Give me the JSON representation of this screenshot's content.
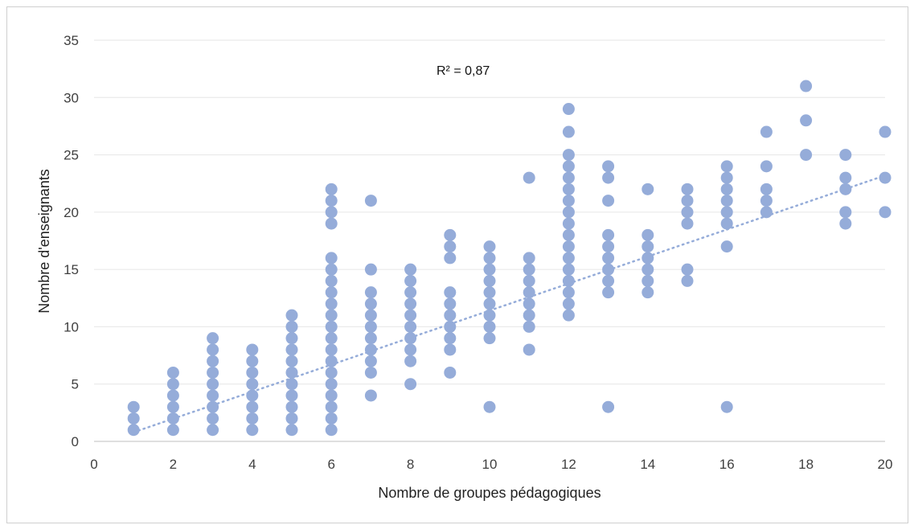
{
  "chart_data": {
    "type": "scatter",
    "title": "",
    "xlabel": "Nombre de groupes pédagogiques",
    "ylabel": "Nombre d'enseignants",
    "xlim": [
      0,
      20
    ],
    "ylim": [
      0,
      35
    ],
    "xticks": [
      "0",
      "2",
      "4",
      "6",
      "8",
      "10",
      "12",
      "14",
      "16",
      "18",
      "20"
    ],
    "yticks": [
      "0",
      "5",
      "10",
      "15",
      "20",
      "25",
      "30",
      "35"
    ],
    "grid": "horizontal",
    "annotation": "R² = 0,87",
    "trendline": {
      "type": "linear",
      "x": [
        1,
        20
      ],
      "y": [
        0.8,
        23.2
      ],
      "style": "dotted"
    },
    "marker_color": "#95acd9",
    "trend_color": "#95acd9",
    "points": [
      [
        1,
        1
      ],
      [
        1,
        2
      ],
      [
        1,
        3
      ],
      [
        2,
        1
      ],
      [
        2,
        2
      ],
      [
        2,
        3
      ],
      [
        2,
        4
      ],
      [
        2,
        5
      ],
      [
        2,
        6
      ],
      [
        3,
        1
      ],
      [
        3,
        2
      ],
      [
        3,
        3
      ],
      [
        3,
        4
      ],
      [
        3,
        5
      ],
      [
        3,
        6
      ],
      [
        3,
        7
      ],
      [
        3,
        8
      ],
      [
        3,
        9
      ],
      [
        4,
        1
      ],
      [
        4,
        2
      ],
      [
        4,
        3
      ],
      [
        4,
        4
      ],
      [
        4,
        5
      ],
      [
        4,
        6
      ],
      [
        4,
        7
      ],
      [
        4,
        8
      ],
      [
        5,
        1
      ],
      [
        5,
        2
      ],
      [
        5,
        3
      ],
      [
        5,
        4
      ],
      [
        5,
        5
      ],
      [
        5,
        6
      ],
      [
        5,
        7
      ],
      [
        5,
        8
      ],
      [
        5,
        9
      ],
      [
        5,
        10
      ],
      [
        5,
        11
      ],
      [
        6,
        1
      ],
      [
        6,
        2
      ],
      [
        6,
        3
      ],
      [
        6,
        4
      ],
      [
        6,
        5
      ],
      [
        6,
        6
      ],
      [
        6,
        7
      ],
      [
        6,
        8
      ],
      [
        6,
        9
      ],
      [
        6,
        10
      ],
      [
        6,
        11
      ],
      [
        6,
        12
      ],
      [
        6,
        13
      ],
      [
        6,
        14
      ],
      [
        6,
        15
      ],
      [
        6,
        16
      ],
      [
        6,
        19
      ],
      [
        6,
        20
      ],
      [
        6,
        21
      ],
      [
        6,
        22
      ],
      [
        7,
        4
      ],
      [
        7,
        6
      ],
      [
        7,
        7
      ],
      [
        7,
        8
      ],
      [
        7,
        9
      ],
      [
        7,
        10
      ],
      [
        7,
        11
      ],
      [
        7,
        12
      ],
      [
        7,
        13
      ],
      [
        7,
        15
      ],
      [
        7,
        21
      ],
      [
        8,
        5
      ],
      [
        8,
        7
      ],
      [
        8,
        8
      ],
      [
        8,
        9
      ],
      [
        8,
        10
      ],
      [
        8,
        11
      ],
      [
        8,
        12
      ],
      [
        8,
        13
      ],
      [
        8,
        14
      ],
      [
        8,
        15
      ],
      [
        9,
        6
      ],
      [
        9,
        8
      ],
      [
        9,
        9
      ],
      [
        9,
        10
      ],
      [
        9,
        11
      ],
      [
        9,
        12
      ],
      [
        9,
        13
      ],
      [
        9,
        16
      ],
      [
        9,
        17
      ],
      [
        9,
        18
      ],
      [
        10,
        3
      ],
      [
        10,
        9
      ],
      [
        10,
        10
      ],
      [
        10,
        11
      ],
      [
        10,
        12
      ],
      [
        10,
        13
      ],
      [
        10,
        14
      ],
      [
        10,
        15
      ],
      [
        10,
        16
      ],
      [
        10,
        17
      ],
      [
        11,
        8
      ],
      [
        11,
        10
      ],
      [
        11,
        11
      ],
      [
        11,
        12
      ],
      [
        11,
        13
      ],
      [
        11,
        14
      ],
      [
        11,
        15
      ],
      [
        11,
        16
      ],
      [
        11,
        23
      ],
      [
        12,
        11
      ],
      [
        12,
        12
      ],
      [
        12,
        13
      ],
      [
        12,
        14
      ],
      [
        12,
        15
      ],
      [
        12,
        16
      ],
      [
        12,
        17
      ],
      [
        12,
        18
      ],
      [
        12,
        19
      ],
      [
        12,
        20
      ],
      [
        12,
        21
      ],
      [
        12,
        22
      ],
      [
        12,
        23
      ],
      [
        12,
        24
      ],
      [
        12,
        25
      ],
      [
        12,
        27
      ],
      [
        12,
        29
      ],
      [
        13,
        3
      ],
      [
        13,
        13
      ],
      [
        13,
        14
      ],
      [
        13,
        15
      ],
      [
        13,
        16
      ],
      [
        13,
        17
      ],
      [
        13,
        18
      ],
      [
        13,
        21
      ],
      [
        13,
        23
      ],
      [
        13,
        24
      ],
      [
        14,
        13
      ],
      [
        14,
        14
      ],
      [
        14,
        15
      ],
      [
        14,
        16
      ],
      [
        14,
        17
      ],
      [
        14,
        18
      ],
      [
        14,
        22
      ],
      [
        15,
        14
      ],
      [
        15,
        15
      ],
      [
        15,
        19
      ],
      [
        15,
        20
      ],
      [
        15,
        21
      ],
      [
        15,
        22
      ],
      [
        16,
        3
      ],
      [
        16,
        17
      ],
      [
        16,
        19
      ],
      [
        16,
        20
      ],
      [
        16,
        21
      ],
      [
        16,
        22
      ],
      [
        16,
        23
      ],
      [
        16,
        24
      ],
      [
        17,
        20
      ],
      [
        17,
        21
      ],
      [
        17,
        22
      ],
      [
        17,
        24
      ],
      [
        17,
        27
      ],
      [
        18,
        25
      ],
      [
        18,
        28
      ],
      [
        18,
        31
      ],
      [
        19,
        19
      ],
      [
        19,
        20
      ],
      [
        19,
        22
      ],
      [
        19,
        23
      ],
      [
        19,
        25
      ],
      [
        20,
        20
      ],
      [
        20,
        23
      ],
      [
        20,
        27
      ]
    ]
  }
}
